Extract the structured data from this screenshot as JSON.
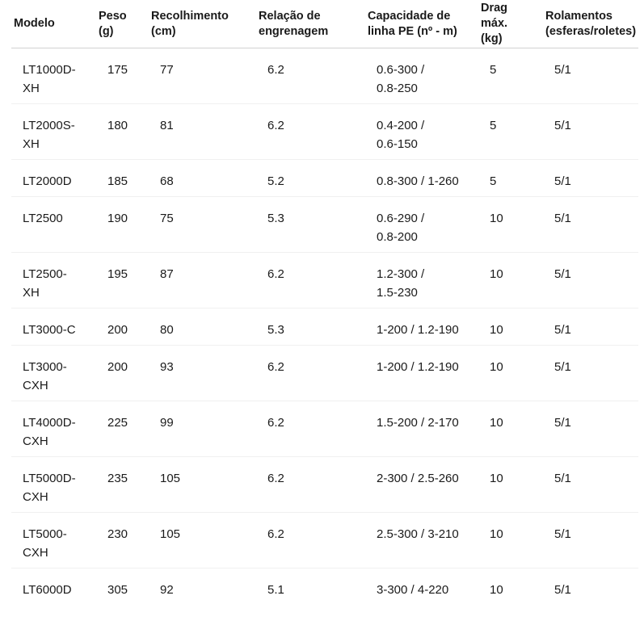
{
  "colors": {
    "text_color": "#1a1a1a",
    "header_border_color": "#d2d2d2",
    "row_border_color": "#f0f0f0",
    "background_color": "#ffffff"
  },
  "table": {
    "columns": [
      {
        "key": "modelo",
        "label": "Modelo"
      },
      {
        "key": "peso",
        "label": "Peso\n(g)"
      },
      {
        "key": "recolhimento",
        "label": "Recolhimento\n(cm)"
      },
      {
        "key": "relacao",
        "label": "Relação de\nengrenagem"
      },
      {
        "key": "capacidade",
        "label": "Capacidade de\nlinha PE (nº - m)"
      },
      {
        "key": "drag",
        "label": "Drag\nmáx.\n(kg)"
      },
      {
        "key": "rolamentos",
        "label": "Rolamentos\n(esferas/roletes)"
      }
    ],
    "rows": [
      [
        "LT1000D-\nXH",
        "175",
        "77",
        "6.2",
        "0.6-300 /\n0.8-250",
        "5",
        "5/1"
      ],
      [
        "LT2000S-\nXH",
        "180",
        "81",
        "6.2",
        "0.4-200 /\n0.6-150",
        "5",
        "5/1"
      ],
      [
        "LT2000D",
        "185",
        "68",
        "5.2",
        "0.8-300 / 1-260",
        "5",
        "5/1"
      ],
      [
        "LT2500",
        "190",
        "75",
        "5.3",
        "0.6-290 /\n0.8-200",
        "10",
        "5/1"
      ],
      [
        "LT2500-\nXH",
        "195",
        "87",
        "6.2",
        "1.2-300 /\n1.5-230",
        "10",
        "5/1"
      ],
      [
        "LT3000-C",
        "200",
        "80",
        "5.3",
        "1-200 / 1.2-190",
        "10",
        "5/1"
      ],
      [
        "LT3000-\nCXH",
        "200",
        "93",
        "6.2",
        "1-200 / 1.2-190",
        "10",
        "5/1"
      ],
      [
        "LT4000D-\nCXH",
        "225",
        "99",
        "6.2",
        "1.5-200 / 2-170",
        "10",
        "5/1"
      ],
      [
        "LT5000D-\nCXH",
        "235",
        "105",
        "6.2",
        "2-300 / 2.5-260",
        "10",
        "5/1"
      ],
      [
        "LT5000-\nCXH",
        "230",
        "105",
        "6.2",
        "2.5-300 / 3-210",
        "10",
        "5/1"
      ],
      [
        "LT6000D",
        "305",
        "92",
        "5.1",
        "3-300 / 4-220",
        "10",
        "5/1"
      ]
    ]
  }
}
